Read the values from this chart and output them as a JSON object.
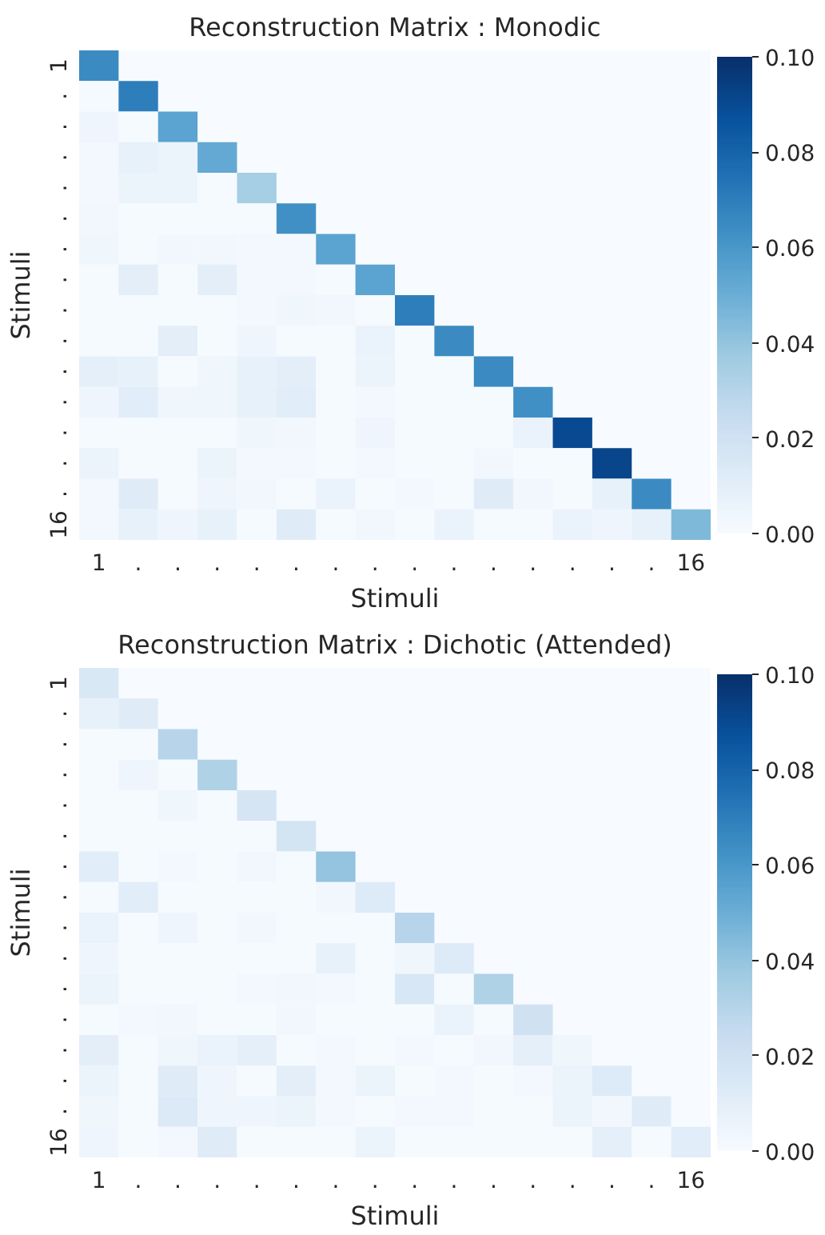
{
  "chart_data": [
    {
      "type": "heatmap",
      "title": "Reconstruction Matrix : Monodic",
      "xlabel": "Stimuli",
      "ylabel": "Stimuli",
      "categories": [
        "1",
        ".",
        ".",
        ".",
        ".",
        ".",
        ".",
        ".",
        ".",
        ".",
        ".",
        ".",
        ".",
        ".",
        ".",
        "16"
      ],
      "y_categories": [
        "1",
        ".",
        ".",
        ".",
        ".",
        ".",
        ".",
        ".",
        ".",
        ".",
        ".",
        ".",
        ".",
        ".",
        ".",
        "16"
      ],
      "clim": [
        0,
        0.1
      ],
      "cticks": [
        {
          "value": 0,
          "label": "0.00"
        },
        {
          "value": 0.02,
          "label": "0.02"
        },
        {
          "value": 0.04,
          "label": "0.04"
        },
        {
          "value": 0.06,
          "label": "0.06"
        },
        {
          "value": 0.08,
          "label": "0.08"
        },
        {
          "value": 0.1,
          "label": "0.10"
        }
      ],
      "cells": [
        [
          0.065,
          null,
          null,
          null,
          null,
          null,
          null,
          null,
          null,
          null,
          null,
          null,
          null,
          null,
          null,
          null
        ],
        [
          0.001,
          0.07,
          null,
          null,
          null,
          null,
          null,
          null,
          null,
          null,
          null,
          null,
          null,
          null,
          null,
          null
        ],
        [
          0.005,
          0.001,
          0.055,
          null,
          null,
          null,
          null,
          null,
          null,
          null,
          null,
          null,
          null,
          null,
          null,
          null
        ],
        [
          0.002,
          0.008,
          0.006,
          0.052,
          null,
          null,
          null,
          null,
          null,
          null,
          null,
          null,
          null,
          null,
          null,
          null
        ],
        [
          0.002,
          0.006,
          0.006,
          0.001,
          0.035,
          null,
          null,
          null,
          null,
          null,
          null,
          null,
          null,
          null,
          null,
          null
        ],
        [
          0.003,
          0.001,
          0.001,
          0.001,
          0.001,
          0.063,
          null,
          null,
          null,
          null,
          null,
          null,
          null,
          null,
          null,
          null
        ],
        [
          0.004,
          0.001,
          0.003,
          0.003,
          0.002,
          0.002,
          0.055,
          null,
          null,
          null,
          null,
          null,
          null,
          null,
          null,
          null
        ],
        [
          0.001,
          0.01,
          0.001,
          0.01,
          0.002,
          0.002,
          0.001,
          0.055,
          null,
          null,
          null,
          null,
          null,
          null,
          null,
          null
        ],
        [
          0.001,
          0.001,
          0.001,
          0.001,
          0.002,
          0.004,
          0.003,
          0.001,
          0.07,
          null,
          null,
          null,
          null,
          null,
          null,
          null
        ],
        [
          0.001,
          0.001,
          0.01,
          0.001,
          0.005,
          0.001,
          0.001,
          0.007,
          0.001,
          0.065,
          null,
          null,
          null,
          null,
          null,
          null
        ],
        [
          0.009,
          0.008,
          0.001,
          0.004,
          0.008,
          0.01,
          0.001,
          0.006,
          0.001,
          0.001,
          0.065,
          null,
          null,
          null,
          null,
          null
        ],
        [
          0.005,
          0.011,
          0.004,
          0.004,
          0.008,
          0.011,
          0.001,
          0.002,
          0.001,
          0.001,
          0.001,
          0.063,
          null,
          null,
          null,
          null
        ],
        [
          0.001,
          0.001,
          0.001,
          0.001,
          0.004,
          0.003,
          0.001,
          0.005,
          0.001,
          0.001,
          0.001,
          0.007,
          0.09,
          null,
          null,
          null
        ],
        [
          0.006,
          0.001,
          0.001,
          0.006,
          0.002,
          0.002,
          0.001,
          0.002,
          0.001,
          0.001,
          0.003,
          0.001,
          0.001,
          0.092,
          null,
          null
        ],
        [
          0.002,
          0.012,
          0.001,
          0.005,
          0.003,
          0.001,
          0.007,
          0.001,
          0.002,
          0.001,
          0.012,
          0.003,
          0.001,
          0.008,
          0.065,
          null
        ],
        [
          0.002,
          0.008,
          0.005,
          0.008,
          0.001,
          0.012,
          0.001,
          0.003,
          0.001,
          0.007,
          0.001,
          0.001,
          0.007,
          0.005,
          0.008,
          0.045
        ]
      ]
    },
    {
      "type": "heatmap",
      "title": "Reconstruction Matrix : Dichotic (Attended)",
      "xlabel": "Stimuli",
      "ylabel": "Stimuli",
      "categories": [
        "1",
        ".",
        ".",
        ".",
        ".",
        ".",
        ".",
        ".",
        ".",
        ".",
        ".",
        ".",
        ".",
        ".",
        ".",
        "16"
      ],
      "y_categories": [
        "1",
        ".",
        ".",
        ".",
        ".",
        ".",
        ".",
        ".",
        ".",
        ".",
        ".",
        ".",
        ".",
        ".",
        ".",
        "16"
      ],
      "clim": [
        0,
        0.1
      ],
      "cticks": [
        {
          "value": 0,
          "label": "0.00"
        },
        {
          "value": 0.02,
          "label": "0.02"
        },
        {
          "value": 0.04,
          "label": "0.04"
        },
        {
          "value": 0.06,
          "label": "0.06"
        },
        {
          "value": 0.08,
          "label": "0.08"
        },
        {
          "value": 0.1,
          "label": "0.10"
        }
      ],
      "cells": [
        [
          0.015,
          null,
          null,
          null,
          null,
          null,
          null,
          null,
          null,
          null,
          null,
          null,
          null,
          null,
          null,
          null
        ],
        [
          0.008,
          0.012,
          null,
          null,
          null,
          null,
          null,
          null,
          null,
          null,
          null,
          null,
          null,
          null,
          null,
          null
        ],
        [
          0.001,
          0.001,
          0.03,
          null,
          null,
          null,
          null,
          null,
          null,
          null,
          null,
          null,
          null,
          null,
          null,
          null
        ],
        [
          0.001,
          0.005,
          0.001,
          0.032,
          null,
          null,
          null,
          null,
          null,
          null,
          null,
          null,
          null,
          null,
          null,
          null
        ],
        [
          0.001,
          0.001,
          0.004,
          0.001,
          0.017,
          null,
          null,
          null,
          null,
          null,
          null,
          null,
          null,
          null,
          null,
          null
        ],
        [
          0.001,
          0.001,
          0.001,
          0.001,
          0.001,
          0.018,
          null,
          null,
          null,
          null,
          null,
          null,
          null,
          null,
          null,
          null
        ],
        [
          0.011,
          0.001,
          0.002,
          0.001,
          0.003,
          0.001,
          0.04,
          null,
          null,
          null,
          null,
          null,
          null,
          null,
          null,
          null
        ],
        [
          0.001,
          0.011,
          0.001,
          0.001,
          0.001,
          0.001,
          0.003,
          0.013,
          null,
          null,
          null,
          null,
          null,
          null,
          null,
          null
        ],
        [
          0.007,
          0.001,
          0.005,
          0.001,
          0.003,
          0.001,
          0.001,
          0.001,
          0.03,
          null,
          null,
          null,
          null,
          null,
          null,
          null
        ],
        [
          0.005,
          0.001,
          0.001,
          0.001,
          0.001,
          0.001,
          0.008,
          0.001,
          0.004,
          0.013,
          null,
          null,
          null,
          null,
          null,
          null
        ],
        [
          0.006,
          0.001,
          0.001,
          0.001,
          0.002,
          0.003,
          0.002,
          0.001,
          0.016,
          0.001,
          0.032,
          null,
          null,
          null,
          null,
          null
        ],
        [
          0.001,
          0.002,
          0.003,
          0.001,
          0.001,
          0.003,
          0.001,
          0.001,
          0.001,
          0.007,
          0.001,
          0.02,
          null,
          null,
          null,
          null
        ],
        [
          0.01,
          0.001,
          0.004,
          0.007,
          0.009,
          0.001,
          0.002,
          0.001,
          0.002,
          0.001,
          0.003,
          0.009,
          0.004,
          null,
          null,
          null
        ],
        [
          0.006,
          0.001,
          0.012,
          0.005,
          0.001,
          0.01,
          0.002,
          0.006,
          0.001,
          0.002,
          0.001,
          0.002,
          0.006,
          0.013,
          null,
          null
        ],
        [
          0.004,
          0.001,
          0.014,
          0.005,
          0.005,
          0.006,
          0.002,
          0.001,
          0.002,
          0.002,
          0.001,
          0.001,
          0.006,
          0.003,
          0.012,
          null
        ],
        [
          0.005,
          0.001,
          0.002,
          0.012,
          0.001,
          0.001,
          0.001,
          0.006,
          0.001,
          0.001,
          0.001,
          0.001,
          0.001,
          0.009,
          0.001,
          0.011
        ]
      ]
    }
  ]
}
